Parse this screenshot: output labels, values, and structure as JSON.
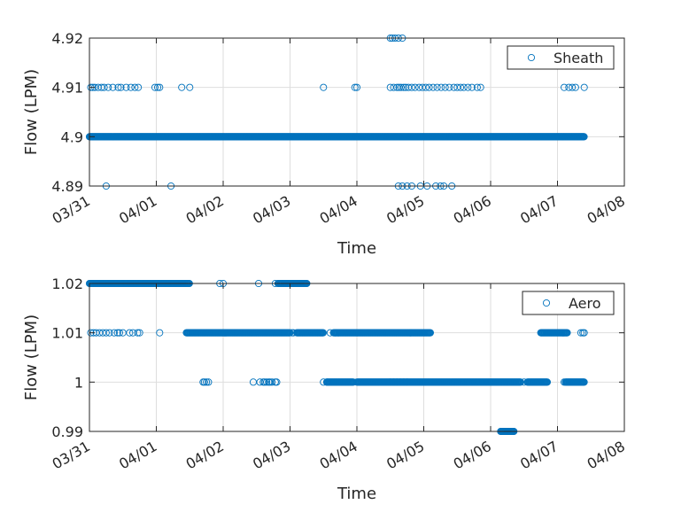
{
  "chart_data": [
    {
      "type": "scatter",
      "title": "",
      "xlabel": "Time",
      "ylabel": "Flow (LPM)",
      "x_ticks": [
        "03/31",
        "04/01",
        "04/02",
        "04/03",
        "04/04",
        "04/05",
        "04/06",
        "04/07",
        "04/08"
      ],
      "xlim_days": [
        0,
        8
      ],
      "y_ticks": [
        "4.89",
        "4.9",
        "4.91",
        "4.92"
      ],
      "ylim": [
        4.89,
        4.92
      ],
      "grid": true,
      "legend": {
        "placement": "top-right",
        "entries": [
          "Sheath"
        ]
      },
      "marker_color": "#0072BD",
      "series": [
        {
          "name": "Sheath",
          "runs": [
            {
              "y": 4.9,
              "from_day": 0.0,
              "to_day": 7.4
            }
          ],
          "points": [
            {
              "y": 4.91,
              "days": [
                0.02,
                0.05,
                0.08,
                0.13,
                0.18,
                0.22,
                0.28,
                0.35,
                0.43,
                0.47,
                0.55,
                0.62,
                0.68,
                0.73,
                0.98,
                1.02,
                1.05,
                1.38,
                1.5,
                3.5,
                3.97,
                4.0,
                4.5,
                4.55,
                4.6,
                4.63,
                4.66,
                4.7,
                4.73,
                4.77,
                4.82,
                4.87,
                4.93,
                4.98,
                5.03,
                5.08,
                5.14,
                5.2,
                5.26,
                5.32,
                5.38,
                5.45,
                5.5,
                5.55,
                5.6,
                5.66,
                5.72,
                5.8,
                5.85,
                7.1,
                7.17,
                7.22,
                7.27,
                7.4
              ]
            },
            {
              "y": 4.92,
              "days": [
                4.5,
                4.53,
                4.57,
                4.62,
                4.68
              ]
            },
            {
              "y": 4.89,
              "days": [
                0.25,
                1.22,
                4.62,
                4.68,
                4.75,
                4.82,
                4.95,
                5.05,
                5.18,
                5.25,
                5.3,
                5.42
              ]
            }
          ]
        }
      ]
    },
    {
      "type": "scatter",
      "title": "",
      "xlabel": "Time",
      "ylabel": "Flow (LPM)",
      "x_ticks": [
        "03/31",
        "04/01",
        "04/02",
        "04/03",
        "04/04",
        "04/05",
        "04/06",
        "04/07",
        "04/08"
      ],
      "xlim_days": [
        0,
        8
      ],
      "y_ticks": [
        "0.99",
        "1",
        "1.01",
        "1.02"
      ],
      "ylim": [
        0.99,
        1.02
      ],
      "grid": true,
      "legend": {
        "placement": "top-right",
        "entries": [
          "Aero"
        ]
      },
      "marker_color": "#0072BD",
      "series": [
        {
          "name": "Aero",
          "runs": [
            {
              "y": 1.02,
              "from_day": 0.0,
              "to_day": 1.5
            },
            {
              "y": 1.02,
              "from_day": 2.82,
              "to_day": 3.25
            },
            {
              "y": 1.01,
              "from_day": 1.45,
              "to_day": 3.0
            },
            {
              "y": 1.01,
              "from_day": 3.1,
              "to_day": 3.5
            },
            {
              "y": 1.01,
              "from_day": 3.65,
              "to_day": 5.1
            },
            {
              "y": 1.01,
              "from_day": 6.75,
              "to_day": 7.15
            },
            {
              "y": 1.0,
              "from_day": 3.55,
              "to_day": 3.95
            },
            {
              "y": 1.0,
              "from_day": 4.0,
              "to_day": 6.45
            },
            {
              "y": 1.0,
              "from_day": 6.55,
              "to_day": 6.85
            },
            {
              "y": 1.0,
              "from_day": 7.12,
              "to_day": 7.4
            },
            {
              "y": 0.99,
              "from_day": 6.15,
              "to_day": 6.35
            }
          ],
          "points": [
            {
              "y": 1.02,
              "days": [
                1.95,
                2.0,
                2.53,
                2.78,
                3.25
              ]
            },
            {
              "y": 1.01,
              "days": [
                0.02,
                0.06,
                0.1,
                0.15,
                0.2,
                0.25,
                0.3,
                0.37,
                0.42,
                0.45,
                0.5,
                0.6,
                0.65,
                0.72,
                0.75,
                1.05,
                3.03,
                3.05,
                3.6,
                3.68,
                4.8,
                7.35,
                7.38,
                7.4
              ]
            },
            {
              "y": 1.0,
              "days": [
                1.7,
                1.72,
                1.75,
                1.78,
                2.45,
                2.55,
                2.6,
                2.62,
                2.65,
                2.68,
                2.7,
                2.73,
                2.78,
                2.8,
                3.5,
                3.55,
                4.5,
                4.55,
                4.6,
                4.65,
                4.7,
                4.75,
                6.5,
                7.1
              ]
            }
          ]
        }
      ]
    }
  ]
}
